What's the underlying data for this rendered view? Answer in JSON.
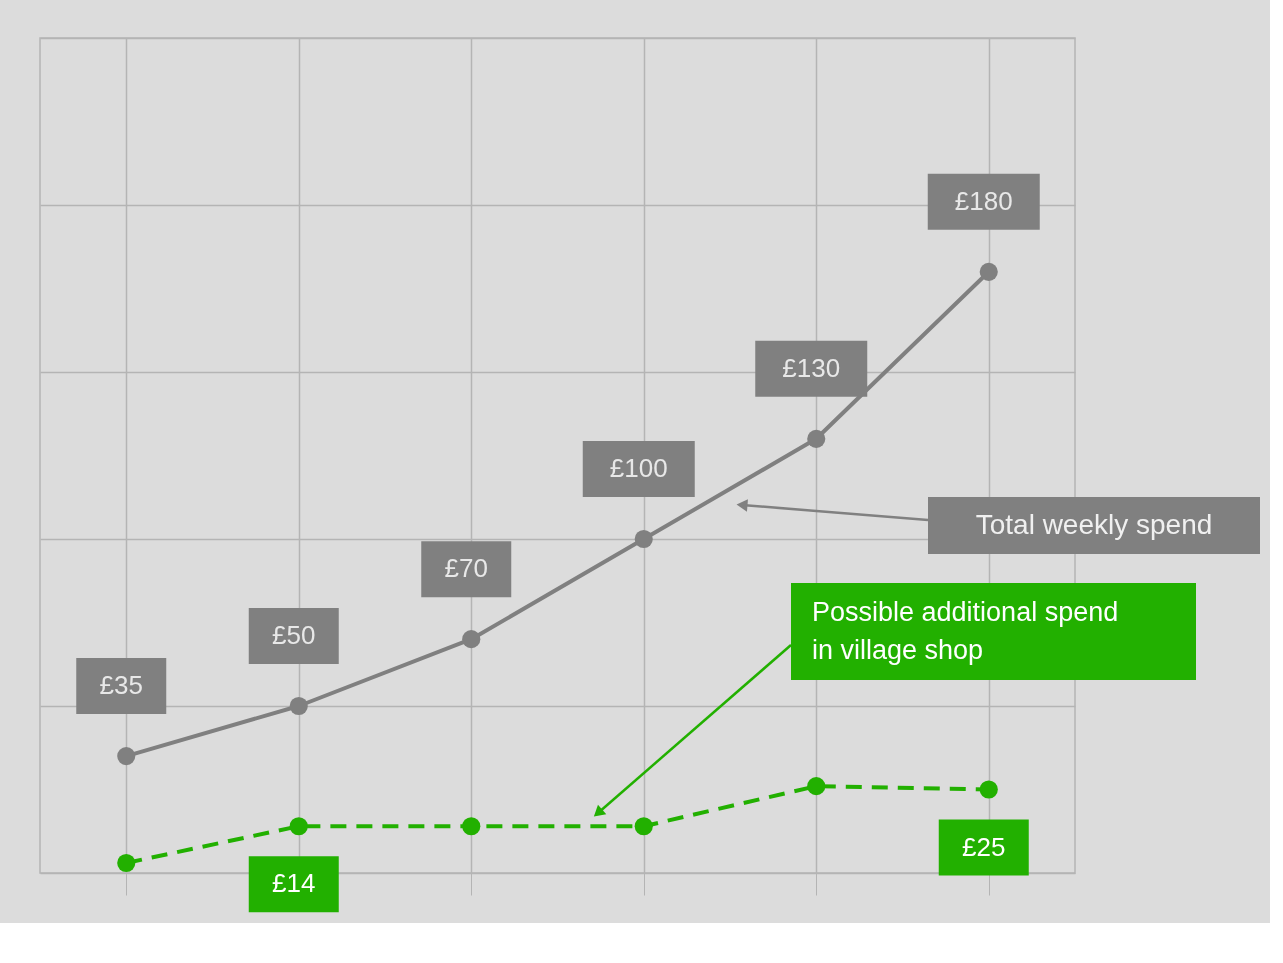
{
  "chart_data": {
    "type": "line",
    "categories": [
      null,
      null,
      null,
      null,
      null,
      null
    ],
    "series": [
      {
        "color": "#808080",
        "values": [
          35,
          50,
          70,
          100,
          130,
          180
        ],
        "value_labels": [
          "£35",
          "£50",
          "£70",
          "£100",
          "£130",
          "£180"
        ],
        "line_style": "solid"
      },
      {
        "color": "#22b000",
        "values": [
          3,
          14,
          14,
          14,
          26,
          25
        ],
        "value_labels": [
          null,
          "£14",
          null,
          null,
          null,
          "£25"
        ],
        "line_style": "dashed"
      }
    ],
    "ylim": [
      0,
      250
    ],
    "yticks": [
      {
        "value": 0,
        "label": null
      },
      {
        "value": 50,
        "label": null
      },
      {
        "value": 100,
        "label": null
      },
      {
        "value": 150,
        "label": null
      },
      {
        "value": 200,
        "label": null
      },
      {
        "value": 250,
        "label": null
      }
    ],
    "grid": true,
    "marker": "circle",
    "tick_labels": false,
    "annotations": [
      "Total weekly spend",
      "Possible additional spend\nin village shop"
    ]
  }
}
